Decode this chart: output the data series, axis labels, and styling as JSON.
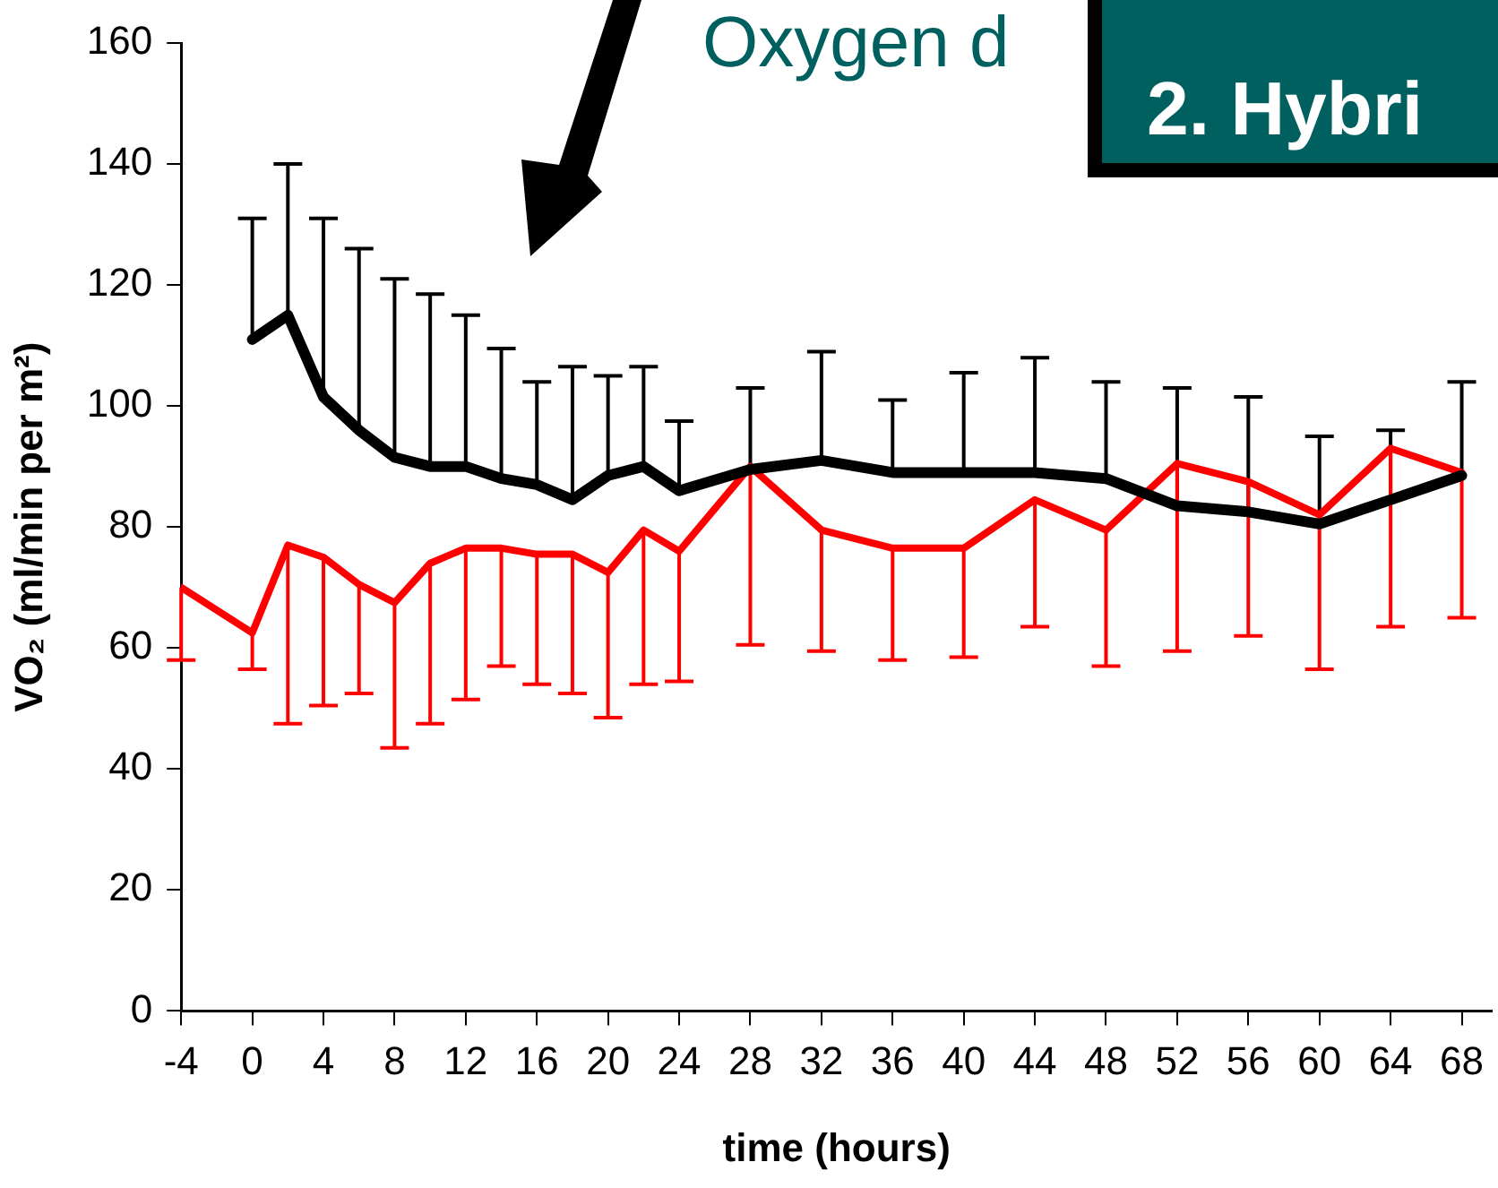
{
  "chart_data": {
    "type": "line",
    "xlabel": "time (hours)",
    "ylabel": "VO₂ (ml/min per m²)",
    "annotations": [
      "Oxygen d",
      "2. Hybri"
    ],
    "xlim": [
      -4,
      69.7
    ],
    "xticks": [
      -4,
      0,
      4,
      8,
      12,
      16,
      20,
      24,
      28,
      32,
      36,
      40,
      44,
      48,
      52,
      56,
      60,
      64,
      68
    ],
    "ylim": [
      0,
      160
    ],
    "yticks": [
      0,
      20,
      40,
      60,
      80,
      100,
      120,
      140,
      160
    ],
    "grid": false,
    "legend": false,
    "marker": "none",
    "line_style": "solid",
    "series": [
      {
        "color": "#000000",
        "x": [
          0,
          2,
          4,
          6,
          8,
          10,
          12,
          14,
          16,
          18,
          20,
          22,
          24,
          28,
          32,
          36,
          40,
          44,
          48,
          52,
          56,
          60,
          64,
          68
        ],
        "values": [
          111,
          115,
          101.5,
          96,
          91.5,
          90,
          90,
          88,
          87,
          84.5,
          88.5,
          90,
          86,
          89.5,
          91,
          89,
          89,
          89,
          88,
          83.5,
          82.5,
          80.5,
          84.5,
          88.5
        ],
        "errors": [
          [
            111,
            131
          ],
          [
            115,
            140
          ],
          [
            101.5,
            131
          ],
          [
            96,
            126
          ],
          [
            91.5,
            121
          ],
          [
            90,
            118.5
          ],
          [
            90,
            115
          ],
          [
            88,
            109.5
          ],
          [
            87,
            104
          ],
          [
            84.5,
            106.5
          ],
          [
            88.5,
            105
          ],
          [
            90,
            106.5
          ],
          [
            86,
            97.5
          ],
          [
            89.5,
            103
          ],
          [
            91,
            109
          ],
          [
            89,
            101
          ],
          [
            89,
            105.5
          ],
          [
            89,
            108
          ],
          [
            88,
            104
          ],
          [
            83.5,
            103
          ],
          [
            82.5,
            101.5
          ],
          [
            80.5,
            95
          ],
          [
            84.5,
            96
          ],
          [
            88.5,
            104
          ]
        ]
      },
      {
        "color": "#ff0000",
        "x": [
          -4,
          0,
          2,
          4,
          6,
          8,
          10,
          12,
          14,
          16,
          18,
          20,
          22,
          24,
          28,
          32,
          36,
          40,
          44,
          48,
          52,
          56,
          60,
          64,
          68
        ],
        "values": [
          70,
          62.5,
          77,
          75,
          70.5,
          67.5,
          74,
          76.5,
          76.5,
          75.5,
          75.5,
          72.5,
          79.5,
          76,
          90,
          79.5,
          76.5,
          76.5,
          84.5,
          79.5,
          90.5,
          87.5,
          82,
          93,
          89
        ],
        "errors": [
          [
            58,
            70
          ],
          [
            56.5,
            62.5
          ],
          [
            47.5,
            77
          ],
          [
            50.5,
            75
          ],
          [
            52.5,
            70.5
          ],
          [
            43.5,
            67.5
          ],
          [
            47.5,
            74
          ],
          [
            51.5,
            76.5
          ],
          [
            57,
            76.5
          ],
          [
            54,
            75.5
          ],
          [
            52.5,
            75.5
          ],
          [
            48.5,
            72.5
          ],
          [
            54,
            79.5
          ],
          [
            54.5,
            76
          ],
          [
            60.5,
            90
          ],
          [
            59.5,
            79.5
          ],
          [
            58,
            76.5
          ],
          [
            58.5,
            76.5
          ],
          [
            63.5,
            84.5
          ],
          [
            57,
            79.5
          ],
          [
            59.5,
            90.5
          ],
          [
            62,
            87.5
          ],
          [
            56.5,
            82
          ],
          [
            63.5,
            93
          ],
          [
            65,
            89
          ]
        ]
      }
    ]
  }
}
